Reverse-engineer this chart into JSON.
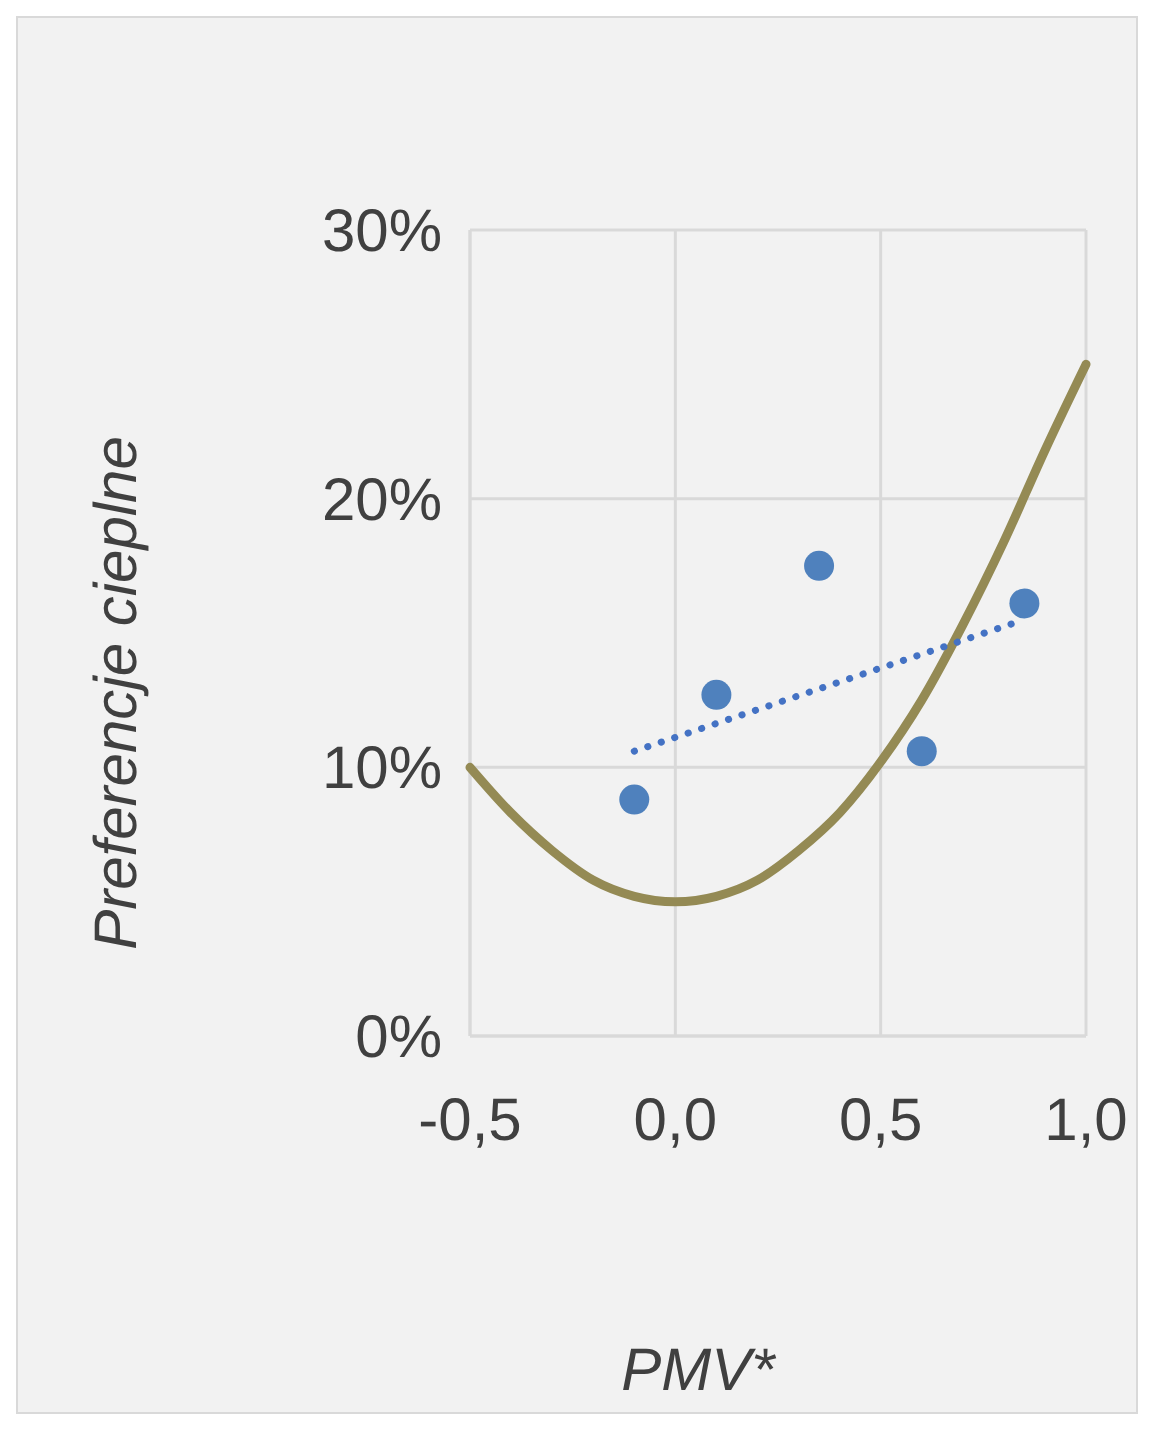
{
  "chart_data": {
    "type": "scatter",
    "xlabel": "PMV*",
    "ylabel": "Preferencje cieplne",
    "xlim": [
      -0.5,
      1.0
    ],
    "xticks": [
      {
        "value": -0.5,
        "label": "-0,5"
      },
      {
        "value": 0,
        "label": "0,0"
      },
      {
        "value": 0.5,
        "label": "0,5"
      },
      {
        "value": 1,
        "label": "1,0"
      }
    ],
    "ylim": [
      0,
      30
    ],
    "yticks": [
      {
        "value": 0,
        "label": "0%"
      },
      {
        "value": 10,
        "label": "10%"
      },
      {
        "value": 20,
        "label": "20%"
      },
      {
        "value": 30,
        "label": "30%"
      }
    ],
    "grid": true,
    "series": [
      {
        "type": "line",
        "color": "#948a54",
        "marker": "none",
        "line_style": "solid",
        "x": [
          -0.5,
          -0.4,
          -0.3,
          -0.2,
          -0.1,
          0,
          0.1,
          0.2,
          0.3,
          0.4,
          0.5,
          0.6,
          0.7,
          0.8,
          0.9,
          1.0
        ],
        "values": [
          10,
          8.3,
          6.9,
          5.8,
          5.2,
          5,
          5.2,
          5.8,
          6.9,
          8.3,
          10.2,
          12.5,
          15.3,
          18.4,
          21.8,
          25
        ]
      },
      {
        "color": "#4f81bd",
        "marker": "circle",
        "x": [
          -0.1,
          0.1,
          0.35,
          0.6,
          0.85
        ],
        "values": [
          8.8,
          12.7,
          17.5,
          10.6,
          16.1
        ]
      },
      {
        "type": "line",
        "color": "#4472c4",
        "marker": "none",
        "line_style": "dotted",
        "x": [
          -0.1,
          0.85
        ],
        "values": [
          10.6,
          15.5
        ]
      }
    ]
  }
}
